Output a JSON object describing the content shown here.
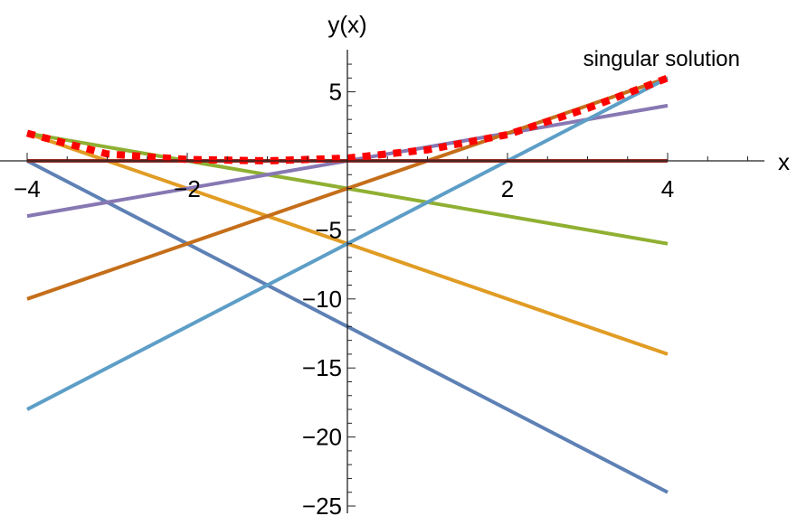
{
  "chart_data": {
    "type": "line",
    "xlabel": "x",
    "ylabel": "y(x)",
    "xlim": [
      -4,
      4
    ],
    "ylim": [
      -25,
      8
    ],
    "x_ticks": [
      -4,
      -2,
      2,
      4
    ],
    "y_ticks": [
      5,
      -5,
      -10,
      -15,
      -20,
      -25
    ],
    "x_tick_labels": [
      "−4",
      "−2",
      "2",
      "4"
    ],
    "y_tick_labels": [
      "5",
      "−5",
      "−10",
      "−15",
      "−20",
      "−25"
    ],
    "annotation": "singular solution",
    "series": [
      {
        "x": [
          -4,
          4
        ],
        "y": [
          0,
          -24
        ],
        "color": "#5E81B5"
      },
      {
        "x": [
          -4,
          4
        ],
        "y": [
          2,
          -14
        ],
        "color": "#E19C24"
      },
      {
        "x": [
          -4,
          4
        ],
        "y": [
          2,
          -6
        ],
        "color": "#8FB032"
      },
      {
        "x": [
          -4,
          4
        ],
        "y": [
          0,
          0
        ],
        "color": "#EB6235"
      },
      {
        "x": [
          -4,
          4
        ],
        "y": [
          -4,
          4
        ],
        "color": "#8778B3"
      },
      {
        "x": [
          -4,
          4
        ],
        "y": [
          -10,
          6
        ],
        "color": "#C56E1A"
      },
      {
        "x": [
          -4,
          4
        ],
        "y": [
          -18,
          6
        ],
        "color": "#5D9EC7"
      },
      {
        "x": [
          -4,
          4
        ],
        "y": [
          0,
          0
        ],
        "color": "#922D25"
      },
      {
        "x": [
          -4,
          -3,
          -2,
          -1,
          0,
          1,
          2,
          3,
          4
        ],
        "y": [
          2,
          0.5,
          0.1,
          0,
          0.2,
          0.8,
          1.9,
          3.8,
          6
        ],
        "color": "#FF0000",
        "style": "dotted"
      }
    ]
  }
}
